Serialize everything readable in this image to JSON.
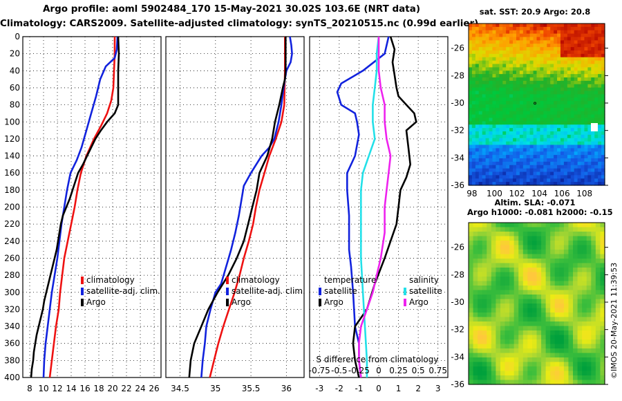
{
  "header": {
    "line1": "Argo profile: aoml 5902484_170 15-May-2021 30.02S 103.6E (NRT data)",
    "line2": "Climatology: CARS2009. Satellite-adjusted climatology: synTS_20210515.nc (0.99d earlier)"
  },
  "colors": {
    "climatology": "#ee1111",
    "satellite": "#1122dd",
    "argo": "#000000",
    "satellite_temp_diff": "#1122dd",
    "argo_temp_diff": "#000000",
    "satellite_sal_diff": "#22e0e8",
    "argo_sal_diff": "#ee22ee"
  },
  "chart_data": [
    {
      "type": "line",
      "name": "temperature-profile",
      "x_ticks": [
        8,
        10,
        12,
        14,
        16,
        18,
        20,
        22,
        24,
        26
      ],
      "xlim": [
        7,
        27
      ],
      "ylim": [
        400,
        0
      ],
      "y_ticks": [
        0,
        20,
        40,
        60,
        80,
        100,
        120,
        140,
        160,
        180,
        200,
        220,
        240,
        260,
        280,
        300,
        320,
        340,
        360,
        380,
        400
      ],
      "legend": [
        "climatology",
        "satellite-adj. clim.",
        "Argo"
      ],
      "series": [
        {
          "name": "climatology",
          "color_key": "climatology",
          "points": [
            [
              20.3,
              0
            ],
            [
              20.3,
              20
            ],
            [
              20.2,
              40
            ],
            [
              20.1,
              60
            ],
            [
              19.8,
              75
            ],
            [
              19.2,
              90
            ],
            [
              18.3,
              105
            ],
            [
              17.3,
              120
            ],
            [
              16.2,
              140
            ],
            [
              15.4,
              160
            ],
            [
              14.9,
              180
            ],
            [
              14.5,
              200
            ],
            [
              14.0,
              220
            ],
            [
              13.5,
              240
            ],
            [
              13.0,
              260
            ],
            [
              12.7,
              280
            ],
            [
              12.4,
              300
            ],
            [
              12.2,
              320
            ],
            [
              11.8,
              340
            ],
            [
              11.5,
              360
            ],
            [
              11.2,
              380
            ],
            [
              10.9,
              400
            ]
          ]
        },
        {
          "name": "satellite-adj. clim.",
          "color_key": "satellite",
          "points": [
            [
              20.7,
              0
            ],
            [
              20.6,
              15
            ],
            [
              20.3,
              25
            ],
            [
              19.0,
              35
            ],
            [
              18.2,
              50
            ],
            [
              17.6,
              70
            ],
            [
              16.9,
              90
            ],
            [
              16.2,
              110
            ],
            [
              15.5,
              130
            ],
            [
              14.8,
              145
            ],
            [
              13.9,
              160
            ],
            [
              13.4,
              180
            ],
            [
              13.0,
              200
            ],
            [
              12.6,
              220
            ],
            [
              12.3,
              240
            ],
            [
              12.0,
              260
            ],
            [
              11.6,
              280
            ],
            [
              11.2,
              300
            ],
            [
              10.9,
              320
            ],
            [
              10.6,
              340
            ],
            [
              10.3,
              360
            ],
            [
              10.1,
              380
            ],
            [
              10.0,
              400
            ]
          ]
        },
        {
          "name": "Argo",
          "color_key": "argo",
          "points": [
            [
              20.8,
              0
            ],
            [
              20.9,
              20
            ],
            [
              20.8,
              40
            ],
            [
              20.8,
              60
            ],
            [
              20.8,
              80
            ],
            [
              20.3,
              90
            ],
            [
              19.2,
              100
            ],
            [
              18.3,
              110
            ],
            [
              17.5,
              120
            ],
            [
              16.9,
              130
            ],
            [
              16.3,
              140
            ],
            [
              15.7,
              150
            ],
            [
              15.0,
              160
            ],
            [
              14.6,
              170
            ],
            [
              14.2,
              180
            ],
            [
              13.8,
              190
            ],
            [
              13.3,
              200
            ],
            [
              12.8,
              210
            ],
            [
              12.5,
              220
            ],
            [
              12.3,
              230
            ],
            [
              12.1,
              240
            ],
            [
              11.9,
              250
            ],
            [
              11.6,
              260
            ],
            [
              11.3,
              270
            ],
            [
              11.0,
              280
            ],
            [
              10.7,
              290
            ],
            [
              10.4,
              300
            ],
            [
              10.1,
              310
            ],
            [
              9.9,
              320
            ],
            [
              9.6,
              330
            ],
            [
              9.3,
              340
            ],
            [
              9.0,
              350
            ],
            [
              8.8,
              360
            ],
            [
              8.6,
              370
            ],
            [
              8.5,
              380
            ],
            [
              8.3,
              390
            ],
            [
              8.2,
              400
            ]
          ]
        }
      ]
    },
    {
      "type": "line",
      "name": "salinity-profile",
      "x_ticks": [
        34.5,
        35,
        35.5,
        36
      ],
      "xlim": [
        34.3,
        36.25
      ],
      "ylim": [
        400,
        0
      ],
      "legend": [
        "climatology",
        "satellite-adj. clim.",
        "Argo"
      ],
      "series": [
        {
          "name": "climatology",
          "color_key": "climatology",
          "points": [
            [
              35.98,
              0
            ],
            [
              35.98,
              40
            ],
            [
              35.97,
              80
            ],
            [
              35.93,
              100
            ],
            [
              35.85,
              120
            ],
            [
              35.76,
              140
            ],
            [
              35.69,
              160
            ],
            [
              35.62,
              180
            ],
            [
              35.57,
              200
            ],
            [
              35.53,
              220
            ],
            [
              35.47,
              240
            ],
            [
              35.4,
              260
            ],
            [
              35.34,
              280
            ],
            [
              35.27,
              300
            ],
            [
              35.19,
              320
            ],
            [
              35.11,
              340
            ],
            [
              35.04,
              360
            ],
            [
              34.98,
              380
            ],
            [
              34.92,
              400
            ]
          ]
        },
        {
          "name": "satellite-adj. clim.",
          "color_key": "satellite",
          "points": [
            [
              36.05,
              0
            ],
            [
              36.07,
              10
            ],
            [
              36.08,
              20
            ],
            [
              36.06,
              30
            ],
            [
              36.0,
              40
            ],
            [
              35.98,
              50
            ],
            [
              35.96,
              60
            ],
            [
              35.93,
              80
            ],
            [
              35.89,
              100
            ],
            [
              35.83,
              120
            ],
            [
              35.76,
              130
            ],
            [
              35.65,
              140
            ],
            [
              35.5,
              160
            ],
            [
              35.4,
              175
            ],
            [
              35.37,
              190
            ],
            [
              35.33,
              210
            ],
            [
              35.28,
              230
            ],
            [
              35.22,
              250
            ],
            [
              35.15,
              270
            ],
            [
              35.08,
              290
            ],
            [
              35.0,
              300
            ],
            [
              34.93,
              320
            ],
            [
              34.87,
              340
            ],
            [
              34.85,
              360
            ],
            [
              34.82,
              380
            ],
            [
              34.8,
              400
            ]
          ]
        },
        {
          "name": "Argo",
          "color_key": "argo",
          "points": [
            [
              35.99,
              0
            ],
            [
              35.99,
              20
            ],
            [
              35.99,
              40
            ],
            [
              35.98,
              50
            ],
            [
              35.95,
              60
            ],
            [
              35.9,
              80
            ],
            [
              35.84,
              100
            ],
            [
              35.8,
              120
            ],
            [
              35.73,
              140
            ],
            [
              35.62,
              160
            ],
            [
              35.58,
              180
            ],
            [
              35.52,
              200
            ],
            [
              35.46,
              220
            ],
            [
              35.4,
              240
            ],
            [
              35.3,
              260
            ],
            [
              35.18,
              280
            ],
            [
              35.03,
              300
            ],
            [
              34.9,
              320
            ],
            [
              34.8,
              340
            ],
            [
              34.7,
              360
            ],
            [
              34.65,
              380
            ],
            [
              34.63,
              400
            ]
          ]
        }
      ]
    },
    {
      "type": "line",
      "name": "difference-profile",
      "x_ticks": [
        -3,
        -2,
        -1,
        0,
        1,
        2,
        3
      ],
      "x_ticks_salinity": [
        "-0.75",
        "-0.5",
        "-0.25",
        "0",
        "0.25",
        "0.5",
        "0.75"
      ],
      "xlabel": "S difference from climatology",
      "xlim": [
        -3.5,
        3.5
      ],
      "ylim": [
        400,
        0
      ],
      "legend_temperature": [
        "temperature",
        "satellite",
        "Argo"
      ],
      "legend_salinity": [
        "salinity",
        "satellite",
        "Argo"
      ],
      "series": [
        {
          "name": "temperature satellite",
          "color_key": "satellite_temp_diff",
          "points": [
            [
              0.5,
              0
            ],
            [
              0.3,
              20
            ],
            [
              -0.8,
              40
            ],
            [
              -1.9,
              55
            ],
            [
              -2.1,
              65
            ],
            [
              -1.9,
              80
            ],
            [
              -1.2,
              90
            ],
            [
              -1.1,
              100
            ],
            [
              -1.0,
              115
            ],
            [
              -1.2,
              140
            ],
            [
              -1.6,
              160
            ],
            [
              -1.6,
              180
            ],
            [
              -1.5,
              210
            ],
            [
              -1.5,
              250
            ],
            [
              -1.4,
              270
            ],
            [
              -1.3,
              300
            ],
            [
              -1.2,
              340
            ],
            [
              -1.0,
              360
            ],
            [
              -1.0,
              380
            ],
            [
              -0.9,
              400
            ]
          ]
        },
        {
          "name": "temperature Argo",
          "color_key": "argo_temp_diff",
          "points": [
            [
              0.6,
              0
            ],
            [
              0.8,
              15
            ],
            [
              0.7,
              30
            ],
            [
              0.8,
              45
            ],
            [
              0.9,
              60
            ],
            [
              1.0,
              70
            ],
            [
              1.4,
              80
            ],
            [
              1.8,
              90
            ],
            [
              1.9,
              100
            ],
            [
              1.4,
              110
            ],
            [
              1.5,
              130
            ],
            [
              1.6,
              150
            ],
            [
              1.4,
              165
            ],
            [
              1.1,
              180
            ],
            [
              1.0,
              200
            ],
            [
              0.9,
              220
            ],
            [
              0.6,
              240
            ],
            [
              0.3,
              260
            ],
            [
              -0.2,
              290
            ],
            [
              -0.6,
              320
            ],
            [
              -1.2,
              340
            ],
            [
              -1.3,
              360
            ],
            [
              -1.2,
              380
            ],
            [
              -1.0,
              400
            ]
          ]
        },
        {
          "name": "salinity satellite",
          "color_key": "satellite_sal_diff",
          "points": [
            [
              0.0,
              0
            ],
            [
              -0.1,
              20
            ],
            [
              -0.1,
              40
            ],
            [
              -0.2,
              60
            ],
            [
              -0.3,
              80
            ],
            [
              -0.3,
              100
            ],
            [
              -0.2,
              120
            ],
            [
              -0.5,
              140
            ],
            [
              -0.8,
              160
            ],
            [
              -0.9,
              180
            ],
            [
              -0.9,
              220
            ],
            [
              -0.9,
              260
            ],
            [
              -0.8,
              300
            ],
            [
              -0.7,
              340
            ],
            [
              -0.6,
              380
            ],
            [
              -0.6,
              400
            ]
          ]
        },
        {
          "name": "salinity Argo",
          "color_key": "argo_sal_diff",
          "points": [
            [
              0.0,
              0
            ],
            [
              0.0,
              20
            ],
            [
              0.0,
              40
            ],
            [
              0.1,
              60
            ],
            [
              0.3,
              80
            ],
            [
              0.3,
              100
            ],
            [
              0.4,
              120
            ],
            [
              0.6,
              140
            ],
            [
              0.5,
              160
            ],
            [
              0.4,
              180
            ],
            [
              0.3,
              200
            ],
            [
              0.3,
              230
            ],
            [
              0.1,
              260
            ],
            [
              -0.1,
              280
            ],
            [
              -0.3,
              300
            ],
            [
              -0.6,
              320
            ],
            [
              -0.9,
              340
            ],
            [
              -1.0,
              360
            ],
            [
              -1.0,
              380
            ],
            [
              -0.9,
              400
            ]
          ]
        }
      ]
    },
    {
      "type": "heatmap",
      "name": "sst-map",
      "title": "sat. SST: 20.9  Argo: 20.8",
      "x_ticks": [
        98,
        100,
        102,
        104,
        106,
        108
      ],
      "y_ticks": [
        -26,
        -28,
        -30,
        -32,
        -34,
        -36
      ],
      "xlim": [
        97.7,
        109.8
      ],
      "ylim": [
        -36,
        -24.2
      ],
      "profile_location": [
        103.6,
        -30.02
      ]
    },
    {
      "type": "heatmap",
      "name": "sla-map",
      "title1": "Altim. SLA: -0.071",
      "title2": "Argo h1000: -0.081 h2000: -0.15",
      "y_ticks": [
        -26,
        -28,
        -30,
        -32,
        -34,
        -36
      ],
      "xlim": [
        97.7,
        109.8
      ],
      "ylim": [
        -36,
        -24.2
      ]
    }
  ],
  "credit": "©IMOS 20-May-2021 11:39:53"
}
